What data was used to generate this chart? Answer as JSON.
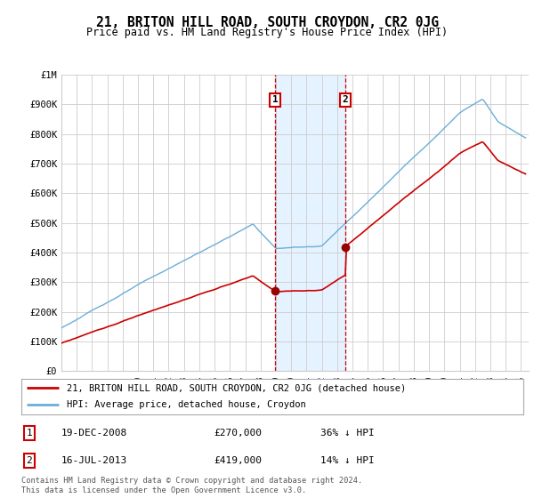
{
  "title": "21, BRITON HILL ROAD, SOUTH CROYDON, CR2 0JG",
  "subtitle": "Price paid vs. HM Land Registry's House Price Index (HPI)",
  "ylim": [
    0,
    1000000
  ],
  "yticks": [
    0,
    100000,
    200000,
    300000,
    400000,
    500000,
    600000,
    700000,
    800000,
    900000,
    1000000
  ],
  "ytick_labels": [
    "£0",
    "£100K",
    "£200K",
    "£300K",
    "£400K",
    "£500K",
    "£600K",
    "£700K",
    "£800K",
    "£900K",
    "£1M"
  ],
  "sale1_x": 2008.96,
  "sale1_y": 270000,
  "sale1_label": "1",
  "sale2_x": 2013.54,
  "sale2_y": 419000,
  "sale2_label": "2",
  "shade_x1": 2008.96,
  "shade_x2": 2013.54,
  "hpi_color": "#6baed6",
  "sale_color": "#cc0000",
  "dot_color": "#990000",
  "legend_sale_label": "21, BRITON HILL ROAD, SOUTH CROYDON, CR2 0JG (detached house)",
  "legend_hpi_label": "HPI: Average price, detached house, Croydon",
  "table_entries": [
    {
      "num": "1",
      "date": "19-DEC-2008",
      "price": "£270,000",
      "hpi": "36% ↓ HPI"
    },
    {
      "num": "2",
      "date": "16-JUL-2013",
      "price": "£419,000",
      "hpi": "14% ↓ HPI"
    }
  ],
  "footnote": "Contains HM Land Registry data © Crown copyright and database right 2024.\nThis data is licensed under the Open Government Licence v3.0.",
  "bg_color": "#ffffff",
  "grid_color": "#cccccc",
  "xmin": 1995,
  "xmax": 2025.5
}
